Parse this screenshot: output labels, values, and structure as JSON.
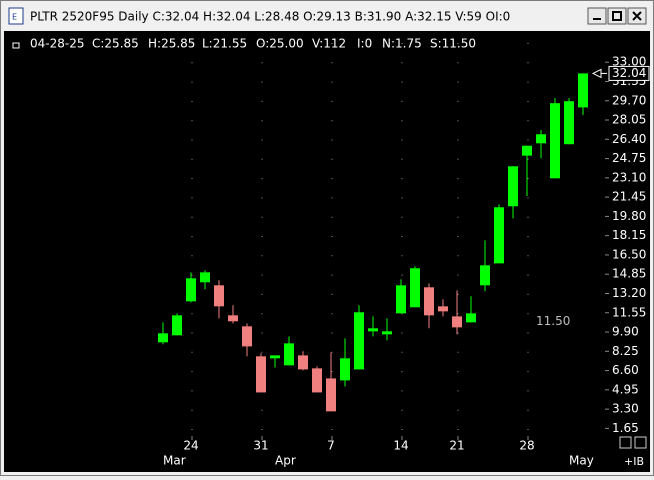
{
  "window_title": "PLTR 2520F95 Daily C:32.04 H:32.04 L:28.48 O:29.13 B:31.90 A:32.15 V:59 OI:0",
  "chart_data": {
    "type": "candlestick",
    "info": [
      "04-28-25",
      "C:25.85",
      "H:25.85",
      "L:21.55",
      "O:25.00",
      "V:112",
      "I:0",
      "N:1.75",
      "S:11.50"
    ],
    "categories": [
      null,
      null,
      "24",
      null,
      null,
      null,
      null,
      "31",
      null,
      null,
      null,
      null,
      "7",
      null,
      null,
      null,
      null,
      "14",
      null,
      null,
      null,
      "21",
      null,
      null,
      null,
      null,
      "28",
      null,
      null,
      null,
      null
    ],
    "months": [
      {
        "label": "Mar",
        "index": 0
      },
      {
        "label": "Apr",
        "index": 8
      },
      {
        "label": "May",
        "index": 29
      }
    ],
    "open": [
      9.02,
      9.62,
      12.53,
      14.16,
      13.9,
      11.33,
      10.39,
      7.82,
      7.65,
      7.05,
      7.9,
      6.79,
      5.93,
      5.76,
      6.7,
      9.96,
      9.7,
      11.5,
      12.02,
      13.73,
      12.1,
      11.24,
      10.73,
      13.9,
      15.78,
      20.67,
      25.0,
      26.06,
      23.06,
      25.98,
      29.13
    ],
    "high": [
      10.73,
      11.5,
      15.01,
      15.18,
      14.33,
      12.19,
      10.64,
      8.08,
      7.9,
      9.53,
      8.25,
      6.96,
      8.16,
      9.36,
      12.19,
      11.24,
      11.07,
      14.41,
      15.53,
      14.07,
      12.7,
      13.47,
      12.96,
      17.75,
      20.84,
      24.09,
      25.85,
      27.18,
      29.92,
      29.92,
      32.04
    ],
    "low": [
      8.85,
      9.62,
      12.45,
      13.56,
      11.07,
      10.64,
      7.82,
      4.73,
      6.88,
      7.05,
      6.62,
      4.73,
      3.11,
      5.25,
      6.7,
      9.53,
      9.19,
      11.5,
      12.02,
      10.22,
      11.24,
      9.7,
      10.73,
      13.39,
      15.78,
      19.64,
      21.55,
      24.78,
      23.06,
      25.98,
      28.48
    ],
    "close": [
      9.79,
      11.33,
      14.5,
      15.01,
      12.1,
      10.82,
      8.67,
      4.73,
      7.9,
      8.93,
      6.7,
      4.73,
      3.11,
      7.65,
      11.59,
      10.22,
      9.96,
      13.9,
      15.36,
      11.33,
      11.67,
      10.3,
      11.5,
      15.61,
      20.58,
      24.09,
      25.85,
      26.83,
      29.49,
      29.66,
      32.04
    ],
    "up_color": "#00ff00",
    "down_color": "#f08080",
    "ylim": [
      1.0,
      35.5
    ],
    "yticks": [
      {
        "value": 33.0,
        "label": "33.00"
      },
      {
        "value": 31.35,
        "label": "31.35"
      },
      {
        "value": 29.7,
        "label": "29.70"
      },
      {
        "value": 28.05,
        "label": "28.05"
      },
      {
        "value": 26.4,
        "label": "26.40"
      },
      {
        "value": 24.75,
        "label": "24.75"
      },
      {
        "value": 23.1,
        "label": "23.10"
      },
      {
        "value": 21.45,
        "label": "21.45"
      },
      {
        "value": 19.8,
        "label": "19.80"
      },
      {
        "value": 18.15,
        "label": "18.15"
      },
      {
        "value": 16.5,
        "label": "16.50"
      },
      {
        "value": 14.85,
        "label": "14.85"
      },
      {
        "value": 13.2,
        "label": "13.20"
      },
      {
        "value": 11.55,
        "label": "11.55"
      },
      {
        "value": 9.9,
        "label": "9.90"
      },
      {
        "value": 8.25,
        "label": "8.25"
      },
      {
        "value": 6.6,
        "label": "6.60"
      },
      {
        "value": 4.95,
        "label": "4.95"
      },
      {
        "value": 3.3,
        "label": "3.30"
      },
      {
        "value": 1.65,
        "label": "1.65"
      }
    ],
    "last_price": 32.04,
    "annotation": {
      "value": 11.5,
      "label": "11.50"
    },
    "corner_label": "+IB",
    "grid": true
  }
}
